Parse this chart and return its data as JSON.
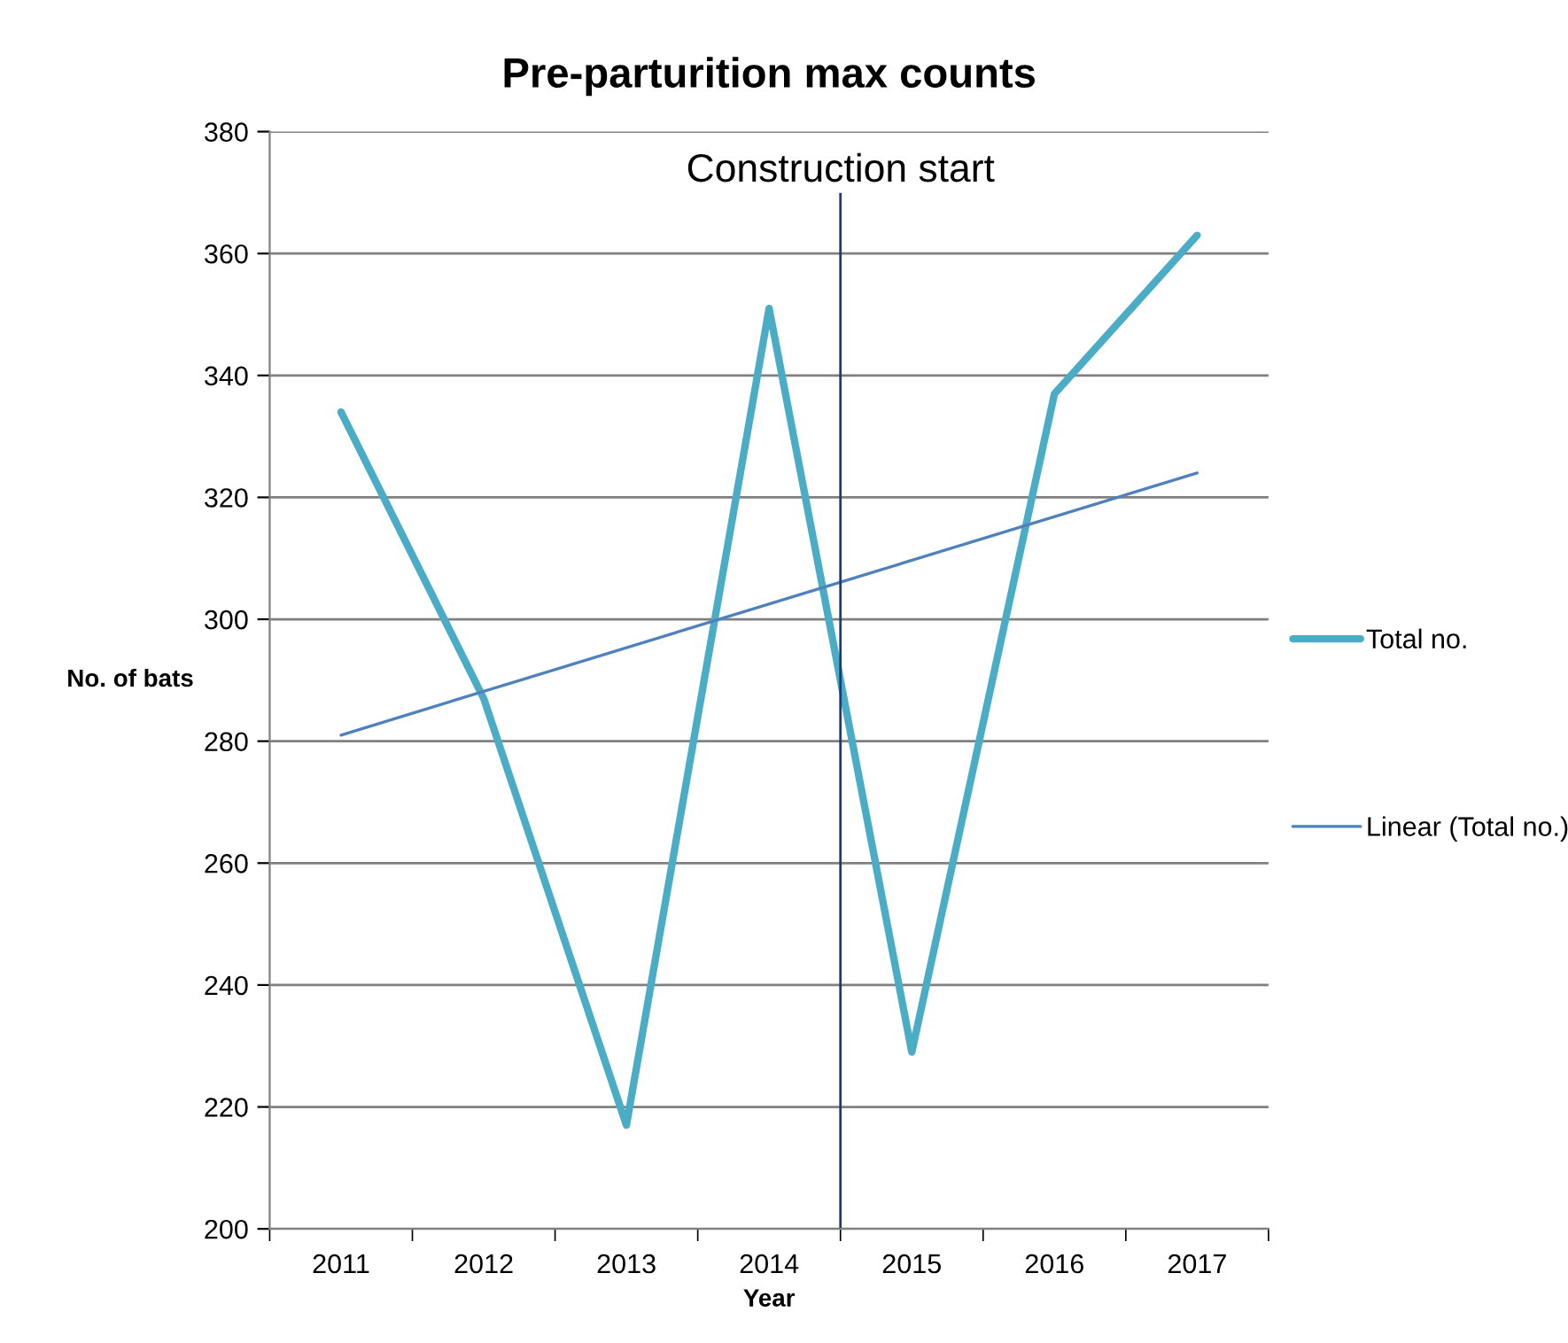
{
  "chart_data": {
    "type": "line",
    "title": "Pre-parturition max counts",
    "xlabel": "Year",
    "ylabel": "No. of bats",
    "x": [
      2011,
      2012,
      2013,
      2014,
      2015,
      2016,
      2017
    ],
    "series": [
      {
        "name": "Total no.",
        "color": "#4bacc6",
        "values": [
          334,
          287,
          217,
          351,
          229,
          337,
          363
        ]
      },
      {
        "name": "Linear (Total no.)",
        "type": "line",
        "color": "#4f81bd",
        "x": [
          2011,
          2017
        ],
        "values": [
          281,
          324
        ]
      }
    ],
    "xlim": [
      2010.5,
      2017.5
    ],
    "xticks": [
      {
        "value": 2010.5,
        "label": null
      },
      2011,
      {
        "value": 2011.5,
        "label": null
      },
      2012,
      {
        "value": 2012.5,
        "label": null
      },
      2013,
      {
        "value": 2013.5,
        "label": null
      },
      2014,
      {
        "value": 2014.5,
        "label": null
      },
      2015,
      {
        "value": 2015.5,
        "label": null
      },
      2016,
      {
        "value": 2016.5,
        "label": null
      },
      2017,
      {
        "value": 2017.5,
        "label": null
      }
    ],
    "ylim": [
      200,
      380
    ],
    "yticks": [
      200,
      220,
      240,
      260,
      280,
      300,
      320,
      340,
      360,
      380
    ],
    "grid": "y",
    "legend": "right",
    "ref_lines": [
      {
        "axis": "x",
        "value": 2014.5,
        "label": "Construction start",
        "color": "#1f3a7a"
      }
    ]
  }
}
